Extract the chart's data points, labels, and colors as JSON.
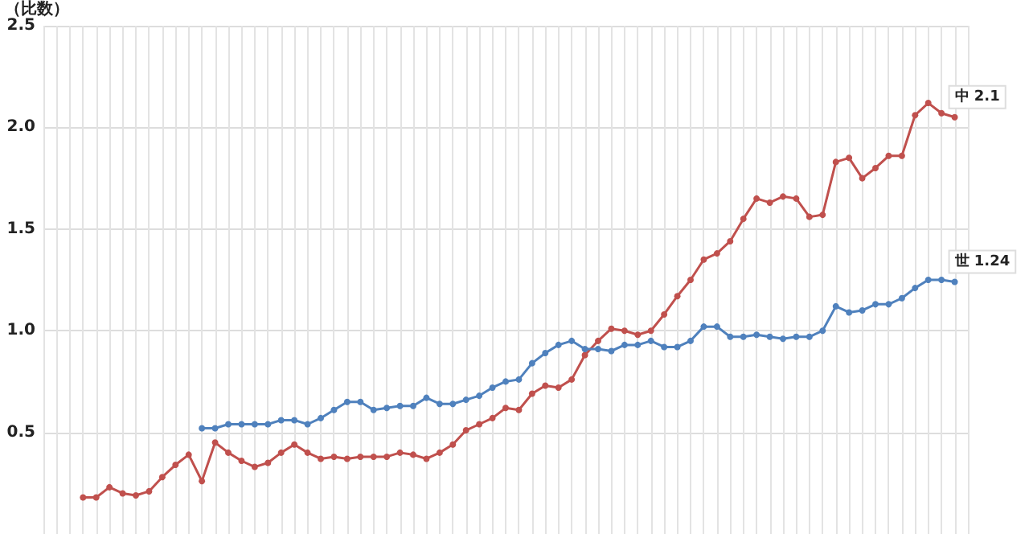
{
  "chart_data": {
    "type": "line",
    "ylabel": "（比数）",
    "categories": [
      null,
      null,
      null,
      null,
      null,
      null,
      null,
      null,
      null,
      null,
      null,
      null,
      null,
      null,
      null,
      null,
      null,
      null,
      null,
      null,
      null,
      null,
      null,
      null,
      null,
      null,
      null,
      null,
      null,
      null,
      null,
      null,
      null,
      null,
      null,
      null,
      null,
      null,
      null,
      null,
      null,
      null,
      null,
      null,
      null,
      null,
      null,
      null,
      null,
      null,
      null,
      null,
      null,
      null,
      null,
      null,
      null,
      null,
      null,
      null,
      null,
      null,
      null,
      null,
      null,
      null,
      null,
      null,
      null,
      null,
      null
    ],
    "series": [
      {
        "name": "中",
        "color": "#c0504d",
        "values": [
          null,
          null,
          null,
          0.18,
          0.18,
          0.23,
          0.2,
          0.19,
          0.21,
          0.28,
          0.34,
          0.39,
          0.26,
          0.45,
          0.4,
          0.36,
          0.33,
          0.35,
          0.4,
          0.44,
          0.4,
          0.37,
          0.38,
          0.37,
          0.38,
          0.38,
          0.38,
          0.4,
          0.39,
          0.37,
          0.4,
          0.44,
          0.51,
          0.54,
          0.57,
          0.62,
          0.61,
          0.69,
          0.73,
          0.72,
          0.76,
          0.88,
          0.95,
          1.01,
          1.0,
          0.98,
          1.0,
          1.08,
          1.17,
          1.25,
          1.35,
          1.38,
          1.44,
          1.55,
          1.65,
          1.63,
          1.66,
          1.65,
          1.56,
          1.57,
          1.83,
          1.85,
          1.75,
          1.8,
          1.86,
          1.86,
          2.06,
          2.12,
          2.07,
          2.05,
          null
        ],
        "value_labels": [
          null,
          null,
          null,
          null,
          null,
          null,
          null,
          null,
          null,
          null,
          null,
          null,
          null,
          null,
          null,
          null,
          null,
          null,
          null,
          null,
          null,
          null,
          null,
          null,
          null,
          null,
          null,
          null,
          null,
          null,
          null,
          null,
          null,
          null,
          null,
          null,
          null,
          null,
          null,
          null,
          null,
          null,
          null,
          null,
          null,
          null,
          null,
          null,
          null,
          null,
          null,
          null,
          null,
          null,
          null,
          null,
          null,
          null,
          null,
          null,
          null,
          null,
          null,
          null,
          null,
          null,
          null,
          null,
          null,
          "2.1",
          null
        ]
      },
      {
        "name": "世",
        "color": "#4f81bd",
        "values": [
          null,
          null,
          null,
          null,
          null,
          null,
          null,
          null,
          null,
          null,
          null,
          null,
          0.52,
          0.52,
          0.54,
          0.54,
          0.54,
          0.54,
          0.56,
          0.56,
          0.54,
          0.57,
          0.61,
          0.65,
          0.65,
          0.61,
          0.62,
          0.63,
          0.63,
          0.67,
          0.64,
          0.64,
          0.66,
          0.68,
          0.72,
          0.75,
          0.76,
          0.84,
          0.89,
          0.93,
          0.95,
          0.91,
          0.91,
          0.9,
          0.93,
          0.93,
          0.95,
          0.92,
          0.92,
          0.95,
          1.02,
          1.02,
          0.97,
          0.97,
          0.98,
          0.97,
          0.96,
          0.97,
          0.97,
          1.0,
          1.12,
          1.09,
          1.1,
          1.13,
          1.13,
          1.16,
          1.21,
          1.25,
          1.25,
          1.24,
          null
        ],
        "value_labels": [
          null,
          null,
          null,
          null,
          null,
          null,
          null,
          null,
          null,
          null,
          null,
          null,
          null,
          null,
          null,
          null,
          null,
          null,
          null,
          null,
          null,
          null,
          null,
          null,
          null,
          null,
          null,
          null,
          null,
          null,
          null,
          null,
          null,
          null,
          null,
          null,
          null,
          null,
          null,
          null,
          null,
          null,
          null,
          null,
          null,
          null,
          null,
          null,
          null,
          null,
          null,
          null,
          null,
          null,
          null,
          null,
          null,
          null,
          null,
          null,
          null,
          null,
          null,
          null,
          null,
          null,
          null,
          null,
          null,
          "1.24",
          null
        ]
      }
    ],
    "ylim": [
      0,
      2.5
    ],
    "yticks": [
      0.5,
      {
        "value": 1,
        "label": "1.0"
      },
      1.5,
      {
        "value": 2,
        "label": "2.0"
      },
      2.5
    ],
    "grid": true,
    "legend": false,
    "tick_labels": "y",
    "marker": "circle",
    "line_style": "solid"
  }
}
